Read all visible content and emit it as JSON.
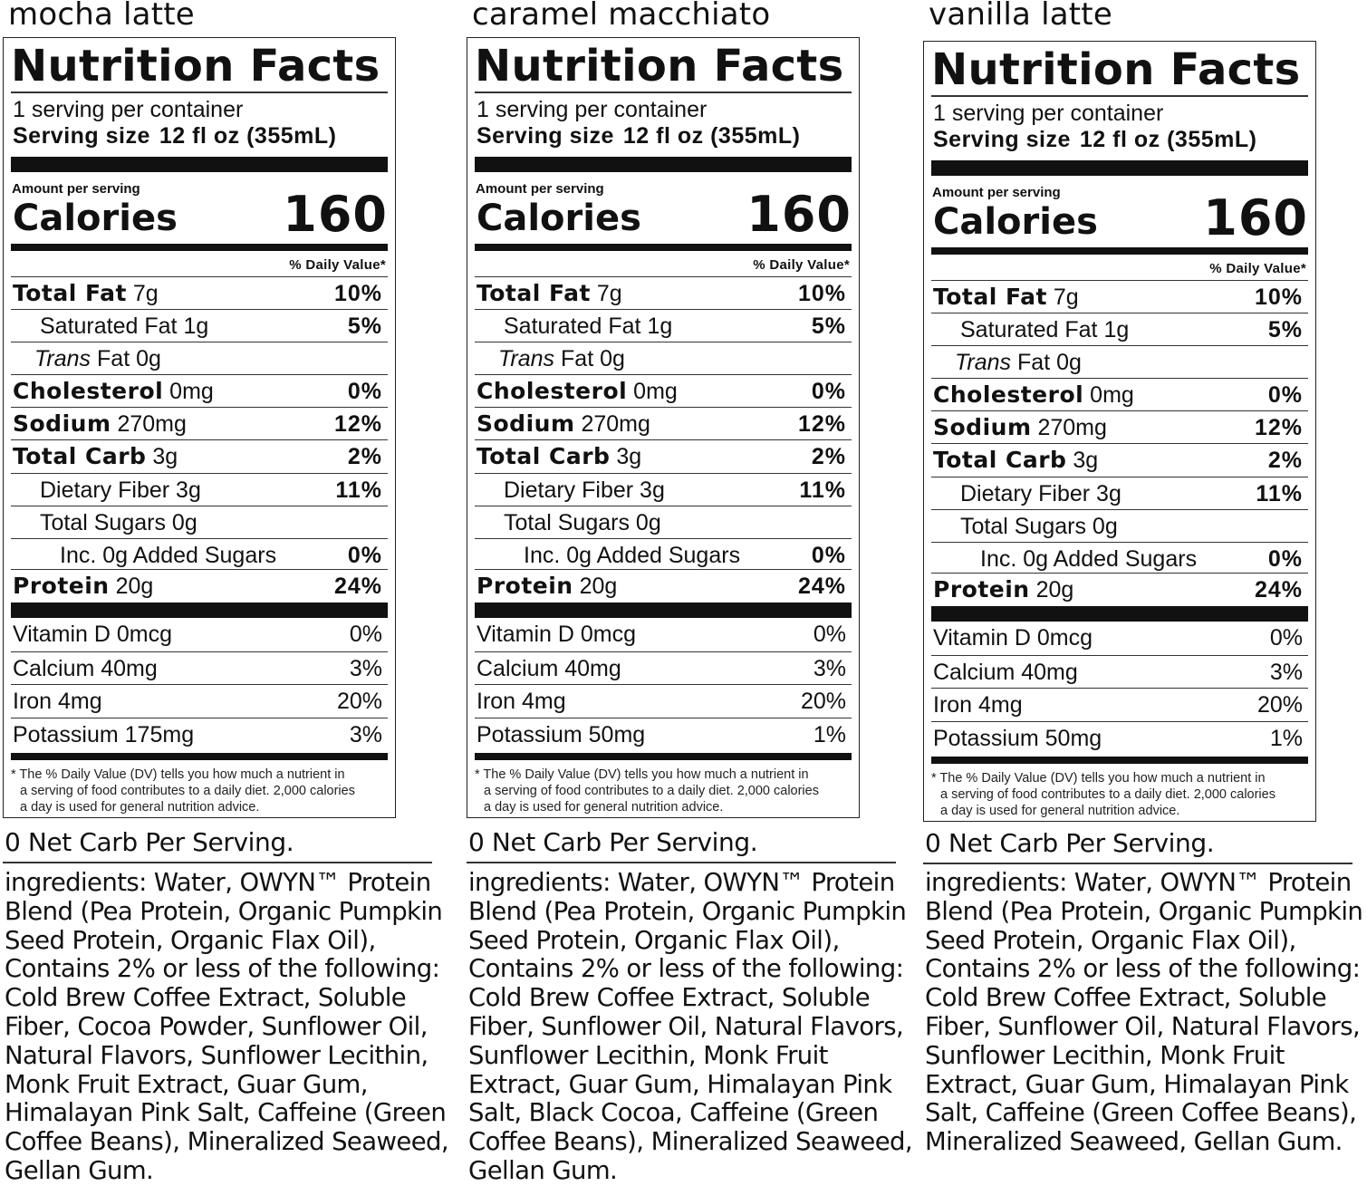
{
  "labels": {
    "title": "Nutrition Facts",
    "servings_per_container": "1 serving per container",
    "serving_size_label": "Serving size",
    "serving_size_value": "12 fl oz (355mL)",
    "amount_per_serving": "Amount per serving",
    "calories_label": "Calories",
    "daily_value_header": "% Daily Value*",
    "footnote_line1": "* The % Daily Value (DV) tells you how much a nutrient in",
    "footnote_line2": "a serving of food contributes to a daily diet. 2,000 calories",
    "footnote_line3": "a day is used for general nutrition advice.",
    "net_carb": "0 Net Carb Per Serving."
  },
  "products": [
    {
      "flavor": "mocha latte",
      "calories": "160",
      "nutrients": {
        "total_fat": {
          "name": "Total Fat",
          "amount": "7g",
          "dv": "10%"
        },
        "saturated_fat": {
          "name": "Saturated Fat",
          "amount": "1g",
          "dv": "5%"
        },
        "trans_fat": {
          "name": "Trans",
          "suffix": "Fat",
          "amount": "0g"
        },
        "cholesterol": {
          "name": "Cholesterol",
          "amount": "0mg",
          "dv": "0%"
        },
        "sodium": {
          "name": "Sodium",
          "amount": "270mg",
          "dv": "12%"
        },
        "total_carb": {
          "name": "Total Carb",
          "amount": "3g",
          "dv": "2%"
        },
        "dietary_fiber": {
          "name": "Dietary Fiber",
          "amount": "3g",
          "dv": "11%"
        },
        "total_sugars": {
          "name": "Total Sugars",
          "amount": "0g"
        },
        "added_sugars": {
          "name": "Inc. 0g Added Sugars",
          "dv": "0%"
        },
        "protein": {
          "name": "Protein",
          "amount": "20g",
          "dv": "24%"
        }
      },
      "vitamins": [
        {
          "name": "Vitamin D 0mcg",
          "dv": "0%"
        },
        {
          "name": "Calcium 40mg",
          "dv": "3%"
        },
        {
          "name": "Iron 4mg",
          "dv": "20%"
        },
        {
          "name": "Potassium 175mg",
          "dv": "3%"
        }
      ],
      "ingredients_lines": [
        "ingredients: Water, OWYN™ Protein",
        "Blend (Pea Protein, Organic Pumpkin",
        "Seed Protein, Organic Flax Oil),",
        "Contains 2% or less of the following:",
        "Cold Brew Coffee Extract, Soluble",
        "Fiber, Cocoa Powder, Sunflower Oil,",
        "Natural Flavors, Sunflower Lecithin,",
        "Monk Fruit Extract, Guar Gum,",
        "Himalayan Pink Salt, Caffeine (Green",
        "Coffee Beans), Mineralized Seaweed,",
        "Gellan Gum."
      ]
    },
    {
      "flavor": "caramel macchiato",
      "calories": "160",
      "nutrients": {
        "total_fat": {
          "name": "Total Fat",
          "amount": "7g",
          "dv": "10%"
        },
        "saturated_fat": {
          "name": "Saturated Fat",
          "amount": "1g",
          "dv": "5%"
        },
        "trans_fat": {
          "name": "Trans",
          "suffix": "Fat",
          "amount": "0g"
        },
        "cholesterol": {
          "name": "Cholesterol",
          "amount": "0mg",
          "dv": "0%"
        },
        "sodium": {
          "name": "Sodium",
          "amount": "270mg",
          "dv": "12%"
        },
        "total_carb": {
          "name": "Total Carb",
          "amount": "3g",
          "dv": "2%"
        },
        "dietary_fiber": {
          "name": "Dietary Fiber",
          "amount": "3g",
          "dv": "11%"
        },
        "total_sugars": {
          "name": "Total Sugars",
          "amount": "0g"
        },
        "added_sugars": {
          "name": "Inc. 0g Added Sugars",
          "dv": "0%"
        },
        "protein": {
          "name": "Protein",
          "amount": "20g",
          "dv": "24%"
        }
      },
      "vitamins": [
        {
          "name": "Vitamin D 0mcg",
          "dv": "0%"
        },
        {
          "name": "Calcium 40mg",
          "dv": "3%"
        },
        {
          "name": "Iron 4mg",
          "dv": "20%"
        },
        {
          "name": "Potassium 50mg",
          "dv": "1%"
        }
      ],
      "ingredients_lines": [
        "ingredients: Water, OWYN™ Protein",
        "Blend (Pea Protein, Organic Pumpkin",
        "Seed Protein, Organic Flax Oil),",
        "Contains 2% or less of the following:",
        "Cold Brew Coffee Extract, Soluble",
        "Fiber, Sunflower Oil, Natural Flavors,",
        "Sunflower Lecithin, Monk Fruit",
        "Extract, Guar Gum, Himalayan Pink",
        "Salt, Black Cocoa, Caffeine (Green",
        "Coffee Beans), Mineralized Seaweed,",
        "Gellan Gum."
      ]
    },
    {
      "flavor": "vanilla latte",
      "calories": "160",
      "nutrients": {
        "total_fat": {
          "name": "Total Fat",
          "amount": "7g",
          "dv": "10%"
        },
        "saturated_fat": {
          "name": "Saturated Fat",
          "amount": "1g",
          "dv": "5%"
        },
        "trans_fat": {
          "name": "Trans",
          "suffix": "Fat",
          "amount": "0g"
        },
        "cholesterol": {
          "name": "Cholesterol",
          "amount": "0mg",
          "dv": "0%"
        },
        "sodium": {
          "name": "Sodium",
          "amount": "270mg",
          "dv": "12%"
        },
        "total_carb": {
          "name": "Total Carb",
          "amount": "3g",
          "dv": "2%"
        },
        "dietary_fiber": {
          "name": "Dietary Fiber",
          "amount": "3g",
          "dv": "11%"
        },
        "total_sugars": {
          "name": "Total Sugars",
          "amount": "0g"
        },
        "added_sugars": {
          "name": "Inc. 0g Added Sugars",
          "dv": "0%"
        },
        "protein": {
          "name": "Protein",
          "amount": "20g",
          "dv": "24%"
        }
      },
      "vitamins": [
        {
          "name": "Vitamin D 0mcg",
          "dv": "0%"
        },
        {
          "name": "Calcium 40mg",
          "dv": "3%"
        },
        {
          "name": "Iron 4mg",
          "dv": "20%"
        },
        {
          "name": "Potassium 50mg",
          "dv": "1%"
        }
      ],
      "ingredients_lines": [
        "ingredients: Water, OWYN™ Protein",
        "Blend (Pea Protein, Organic Pumpkin",
        "Seed Protein, Organic Flax Oil),",
        "Contains 2% or less of the following:",
        "Cold Brew Coffee Extract, Soluble",
        "Fiber, Sunflower Oil, Natural Flavors,",
        "Sunflower Lecithin, Monk Fruit",
        "Extract, Guar Gum, Himalayan Pink",
        "Salt, Caffeine (Green Coffee Beans),",
        "Mineralized Seaweed, Gellan Gum."
      ]
    }
  ]
}
